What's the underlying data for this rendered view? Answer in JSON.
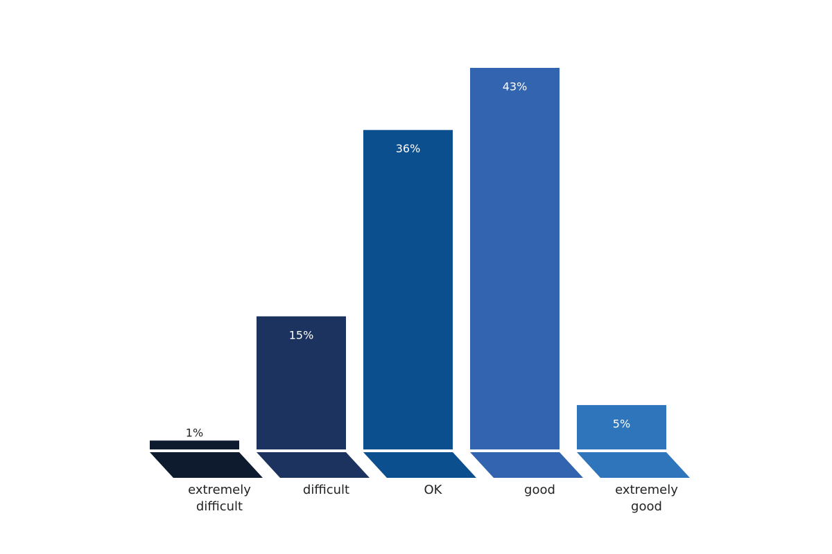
{
  "chart_data": {
    "type": "bar",
    "categories": [
      "extremely difficult",
      "difficult",
      "OK",
      "good",
      "extremely good"
    ],
    "values": [
      1,
      15,
      36,
      43,
      5
    ],
    "value_labels": [
      "1%",
      "15%",
      "36%",
      "43%",
      "5%"
    ],
    "colors": [
      "#0e1a2e",
      "#1b335e",
      "#0b4f8e",
      "#3264af",
      "#2e75bb"
    ]
  }
}
